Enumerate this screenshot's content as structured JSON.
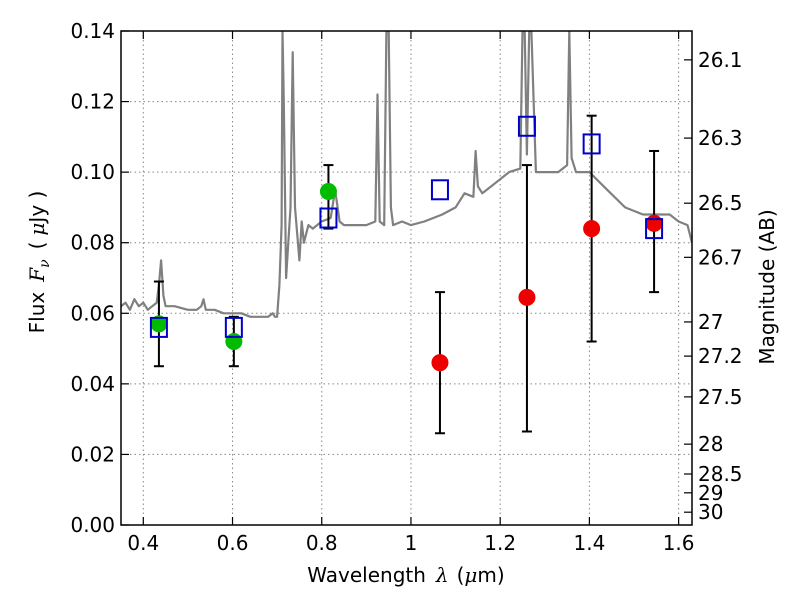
{
  "chart_data": {
    "type": "scatter",
    "xlabel_main": "Wavelength",
    "xlabel_symbol": "λ",
    "xlabel_unit_open": "(",
    "xlabel_unit_mu": "μ",
    "xlabel_unit_rest": "m)",
    "ylabel_main": "Flux",
    "ylabel_symbol": "F",
    "ylabel_sub": "ν",
    "ylabel_unit_open": "(",
    "ylabel_unit_mu": "μ",
    "ylabel_unit_rest": "Jy )",
    "y2label": "Magnitude (AB)",
    "xlim": [
      0.35,
      1.63
    ],
    "ylim": [
      0.0,
      0.14
    ],
    "grid": true,
    "x_ticks": [
      0.4,
      0.6,
      0.8,
      1.0,
      1.2,
      1.4,
      1.6
    ],
    "x_tick_labels": [
      "0.4",
      "0.6",
      "0.8",
      "1",
      "1.2",
      "1.4",
      "1.6"
    ],
    "y_ticks": [
      0.0,
      0.02,
      0.04,
      0.06,
      0.08,
      0.1,
      0.12,
      0.14
    ],
    "y_tick_labels": [
      "0.00",
      "0.02",
      "0.04",
      "0.06",
      "0.08",
      "0.10",
      "0.12",
      "0.14"
    ],
    "y2_ticks": [
      26.1,
      26.3,
      26.5,
      26.7,
      27,
      27.2,
      27.5,
      28,
      28.5,
      29,
      30
    ],
    "y2_tick_labels": [
      "26.1",
      "26.3",
      "26.5",
      "26.7",
      "27",
      "27.2",
      "27.5",
      "28",
      "28.5",
      "29",
      "30"
    ],
    "colors": {
      "spectrum": "#808080",
      "green_points": "#00bb00",
      "red_points": "#ee0000",
      "model_boxes": "#0000cc",
      "errorbars": "#000000",
      "grid": "#888888"
    },
    "series": [
      {
        "type": "line",
        "color": "#808080",
        "x": [
          0.35,
          0.36,
          0.37,
          0.38,
          0.39,
          0.4,
          0.41,
          0.42,
          0.43,
          0.435,
          0.44,
          0.445,
          0.45,
          0.47,
          0.5,
          0.52,
          0.53,
          0.535,
          0.54,
          0.56,
          0.58,
          0.6,
          0.62,
          0.64,
          0.66,
          0.68,
          0.69,
          0.695,
          0.7,
          0.705,
          0.71,
          0.712,
          0.715,
          0.72,
          0.73,
          0.735,
          0.74,
          0.75,
          0.755,
          0.76,
          0.77,
          0.78,
          0.8,
          0.82,
          0.83,
          0.84,
          0.85,
          0.87,
          0.9,
          0.92,
          0.925,
          0.93,
          0.94,
          0.945,
          0.95,
          0.955,
          0.96,
          0.98,
          1.0,
          1.03,
          1.05,
          1.07,
          1.1,
          1.12,
          1.14,
          1.145,
          1.15,
          1.16,
          1.18,
          1.2,
          1.22,
          1.245,
          1.25,
          1.255,
          1.26,
          1.265,
          1.27,
          1.28,
          1.3,
          1.33,
          1.35,
          1.355,
          1.36,
          1.37,
          1.4,
          1.44,
          1.48,
          1.52,
          1.55,
          1.58,
          1.6,
          1.62,
          1.63
        ],
        "values": [
          0.062,
          0.063,
          0.061,
          0.064,
          0.062,
          0.063,
          0.061,
          0.062,
          0.063,
          0.068,
          0.075,
          0.065,
          0.062,
          0.062,
          0.061,
          0.061,
          0.062,
          0.064,
          0.061,
          0.061,
          0.06,
          0.06,
          0.06,
          0.059,
          0.059,
          0.059,
          0.06,
          0.059,
          0.059,
          0.068,
          0.085,
          0.14,
          0.12,
          0.07,
          0.09,
          0.134,
          0.09,
          0.075,
          0.086,
          0.08,
          0.085,
          0.084,
          0.086,
          0.087,
          0.095,
          0.086,
          0.085,
          0.085,
          0.085,
          0.086,
          0.122,
          0.086,
          0.085,
          0.14,
          0.14,
          0.09,
          0.085,
          0.086,
          0.085,
          0.086,
          0.087,
          0.088,
          0.09,
          0.094,
          0.093,
          0.106,
          0.096,
          0.094,
          0.096,
          0.098,
          0.1,
          0.101,
          0.14,
          0.14,
          0.105,
          0.14,
          0.14,
          0.1,
          0.1,
          0.1,
          0.102,
          0.14,
          0.104,
          0.1,
          0.1,
          0.095,
          0.09,
          0.088,
          0.088,
          0.088,
          0.086,
          0.085,
          0.08
        ]
      },
      {
        "type": "errorbar",
        "color": "#00bb00",
        "x": [
          0.435,
          0.603,
          0.815
        ],
        "values": [
          0.057,
          0.052,
          0.0945
        ],
        "yerr_low": [
          0.045,
          0.045,
          0.084
        ],
        "yerr_high": [
          0.069,
          0.059,
          0.102
        ]
      },
      {
        "type": "errorbar",
        "color": "#ee0000",
        "x": [
          1.065,
          1.26,
          1.405,
          1.545
        ],
        "values": [
          0.046,
          0.0645,
          0.084,
          0.0855
        ],
        "yerr_low": [
          0.026,
          0.0265,
          0.052,
          0.066
        ],
        "yerr_high": [
          0.066,
          0.102,
          0.116,
          0.106
        ]
      },
      {
        "type": "scatter_box",
        "color": "#0000cc",
        "x": [
          0.435,
          0.603,
          0.815,
          1.065,
          1.26,
          1.405,
          1.545
        ],
        "values": [
          0.056,
          0.056,
          0.087,
          0.095,
          0.113,
          0.108,
          0.084
        ]
      }
    ]
  }
}
